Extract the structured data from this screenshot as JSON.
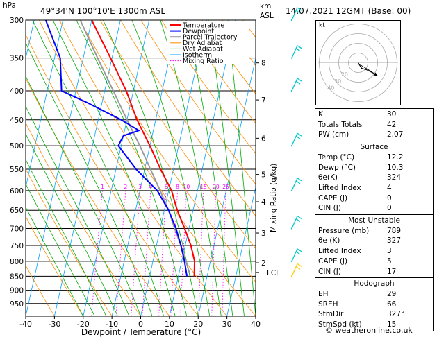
{
  "header": {
    "pressure_unit": "hPa",
    "location": "49°34'N 100°10'E 1300m ASL",
    "height_unit_top": "km",
    "height_unit_bottom": "ASL",
    "datetime": "14.07.2021 12GMT (Base: 00)"
  },
  "chart_data": {
    "type": "skew-t",
    "xlabel": "Dewpoint / Temperature (°C)",
    "ylabel_left": "hPa",
    "ylabel_right": "Mixing Ratio (g/kg)",
    "xlim": [
      -40,
      40
    ],
    "x_ticks": [
      "-40",
      "-30",
      "-20",
      "-10",
      "0",
      "10",
      "20",
      "30",
      "40"
    ],
    "pressure_ticks": [
      "300",
      "350",
      "400",
      "450",
      "500",
      "550",
      "600",
      "650",
      "700",
      "750",
      "800",
      "850",
      "900",
      "950"
    ],
    "km_ticks": [
      {
        "p": 357,
        "label": "8"
      },
      {
        "p": 415,
        "label": "7"
      },
      {
        "p": 485,
        "label": "6"
      },
      {
        "p": 562,
        "label": "5"
      },
      {
        "p": 628,
        "label": "4"
      },
      {
        "p": 713,
        "label": "3"
      },
      {
        "p": 805,
        "label": "2"
      }
    ],
    "lcl": {
      "p": 837,
      "label": "LCL"
    },
    "mixing_ratio_labels": [
      "1",
      "2",
      "3",
      "4",
      "6",
      "8",
      "10",
      "15",
      "20",
      "25"
    ],
    "mixing_ratio_values": [
      1,
      2,
      3,
      4,
      6,
      8,
      10,
      15,
      20,
      25
    ],
    "legend": [
      "Temperature",
      "Dewpoint",
      "Parcel Trajectory",
      "Dry Adiabat",
      "Wet Adiabat",
      "Isotherm",
      "Mixing Ratio"
    ],
    "legend_placement": "top-left",
    "colors": {
      "temperature": "#ff0000",
      "dewpoint": "#0000ff",
      "parcel": "#999999",
      "dry_adiabat": "#ff8c00",
      "wet_adiabat": "#00aa00",
      "isotherm": "#00a0ff",
      "mixing_ratio": "#ff00ff",
      "wind_barb": "#00cccc"
    },
    "temperature": [
      [
        850,
        15.5
      ],
      [
        800,
        14.5
      ],
      [
        750,
        12
      ],
      [
        700,
        8.5
      ],
      [
        650,
        4.5
      ],
      [
        600,
        1
      ],
      [
        550,
        -4.5
      ],
      [
        500,
        -10
      ],
      [
        450,
        -16.5
      ],
      [
        400,
        -22.5
      ],
      [
        350,
        -30.5
      ],
      [
        300,
        -40
      ]
    ],
    "dewpoint": [
      [
        850,
        13
      ],
      [
        800,
        11
      ],
      [
        750,
        8.5
      ],
      [
        700,
        5.5
      ],
      [
        650,
        1.5
      ],
      [
        600,
        -4
      ],
      [
        550,
        -13
      ],
      [
        500,
        -21
      ],
      [
        480,
        -20
      ],
      [
        470,
        -15
      ],
      [
        450,
        -22
      ],
      [
        420,
        -35
      ],
      [
        400,
        -45
      ],
      [
        350,
        -48
      ],
      [
        300,
        -56
      ]
    ],
    "parcel": [
      [
        837,
        13.5
      ],
      [
        800,
        11.5
      ],
      [
        750,
        8.5
      ],
      [
        700,
        5
      ],
      [
        650,
        1.5
      ],
      [
        600,
        -3
      ],
      [
        550,
        -8
      ],
      [
        500,
        -13.5
      ],
      [
        450,
        -20
      ],
      [
        400,
        -27
      ],
      [
        350,
        -35
      ],
      [
        300,
        -44
      ]
    ],
    "wind_barbs": [
      300,
      350,
      400,
      500,
      600,
      700,
      800,
      850
    ]
  },
  "indices": [
    {
      "label": "K",
      "value": "30"
    },
    {
      "label": "Totals Totals",
      "value": "42"
    },
    {
      "label": "PW (cm)",
      "value": "2.07"
    }
  ],
  "surface": {
    "title": "Surface",
    "rows": [
      {
        "label": "Temp (°C)",
        "value": "12.2"
      },
      {
        "label": "Dewp (°C)",
        "value": "10.3"
      },
      {
        "label": "θe(K)",
        "value": "324"
      },
      {
        "label": "Lifted Index",
        "value": "4"
      },
      {
        "label": "CAPE (J)",
        "value": "0"
      },
      {
        "label": "CIN (J)",
        "value": "0"
      }
    ]
  },
  "most_unstable": {
    "title": "Most Unstable",
    "rows": [
      {
        "label": "Pressure (mb)",
        "value": "789"
      },
      {
        "label": "θe (K)",
        "value": "327"
      },
      {
        "label": "Lifted Index",
        "value": "3"
      },
      {
        "label": "CAPE (J)",
        "value": "5"
      },
      {
        "label": "CIN (J)",
        "value": "17"
      }
    ]
  },
  "hodograph": {
    "title": "Hodograph",
    "chart_title": "kt",
    "ring_labels": [
      "20",
      "30",
      "40"
    ],
    "rows": [
      {
        "label": "EH",
        "value": "29"
      },
      {
        "label": "SREH",
        "value": "66"
      },
      {
        "label": "StmDir",
        "value": "327°"
      },
      {
        "label": "StmSpd (kt)",
        "value": "15"
      }
    ]
  },
  "credit": "© weatheronline.co.uk"
}
